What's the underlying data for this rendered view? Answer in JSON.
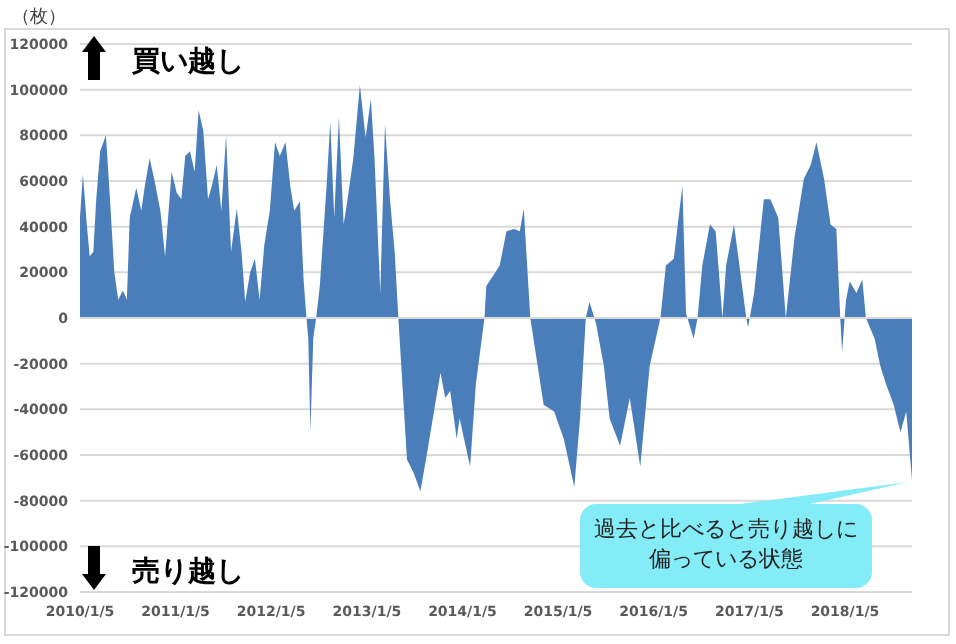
{
  "chart_data": {
    "type": "area",
    "ylabel": "（枚）",
    "color": "#4a7ebb",
    "grid": "y",
    "annotations": [
      "買い越し",
      "売り越し",
      {
        "text": "過去と比べると売り越しに偏っている状態",
        "x": "2018-09-18",
        "y": -71000
      }
    ],
    "xlim": [
      "2010-01-05",
      "2018-09-18"
    ],
    "xticks": [
      {
        "value": "2010-01-05",
        "label": "2010/1/5"
      },
      {
        "value": "2011-01-05",
        "label": "2011/1/5"
      },
      {
        "value": "2012-01-05",
        "label": "2012/1/5"
      },
      {
        "value": "2013-01-05",
        "label": "2013/1/5"
      },
      {
        "value": "2014-01-05",
        "label": "2014/1/5"
      },
      {
        "value": "2015-01-05",
        "label": "2015/1/5"
      },
      {
        "value": "2016-01-05",
        "label": "2016/1/5"
      },
      {
        "value": "2017-01-05",
        "label": "2017/1/5"
      },
      {
        "value": "2018-01-05",
        "label": "2018/1/5"
      }
    ],
    "ylim": [
      -120000,
      120000
    ],
    "yticks": [
      -120000,
      -100000,
      -80000,
      -60000,
      -40000,
      -20000,
      0,
      20000,
      40000,
      60000,
      80000,
      100000,
      120000
    ],
    "x": [
      "2010-01-05",
      "2010-01-16",
      "2010-01-31",
      "2010-02-11",
      "2010-02-25",
      "2010-03-08",
      "2010-03-23",
      "2010-04-14",
      "2010-04-28",
      "2010-05-16",
      "2010-05-31",
      "2010-06-18",
      "2010-07-03",
      "2010-07-14",
      "2010-08-08",
      "2010-08-27",
      "2010-09-10",
      "2010-09-28",
      "2010-10-17",
      "2010-11-08",
      "2010-11-26",
      "2010-12-21",
      "2011-01-09",
      "2011-01-27",
      "2011-02-11",
      "2011-03-01",
      "2011-03-19",
      "2011-04-03",
      "2011-04-21",
      "2011-05-09",
      "2011-05-24",
      "2011-06-11",
      "2011-06-29",
      "2011-07-17",
      "2011-08-05",
      "2011-08-27",
      "2011-09-14",
      "2011-09-28",
      "2011-10-17",
      "2011-11-04",
      "2011-11-22",
      "2011-12-10",
      "2011-12-31",
      "2012-01-20",
      "2012-02-07",
      "2012-02-29",
      "2012-03-18",
      "2012-04-02",
      "2012-04-24",
      "2012-05-08",
      "2012-05-19",
      "2012-05-26",
      "2012-06-03",
      "2012-06-14",
      "2012-06-25",
      "2012-07-09",
      "2012-08-04",
      "2012-08-18",
      "2012-09-02",
      "2012-09-20",
      "2012-10-08",
      "2012-10-23",
      "2012-11-14",
      "2012-12-09",
      "2012-12-31",
      "2013-01-20",
      "2013-02-03",
      "2013-02-25",
      "2013-03-15",
      "2013-04-03",
      "2013-04-21",
      "2013-05-05",
      "2013-06-07",
      "2013-07-03",
      "2013-07-28",
      "2013-08-23",
      "2013-09-18",
      "2013-10-13",
      "2013-10-31",
      "2013-11-19",
      "2013-12-14",
      "2013-12-25",
      "2014-02-03",
      "2014-02-25",
      "2014-03-30",
      "2014-04-06",
      "2014-05-05",
      "2014-05-27",
      "2014-06-22",
      "2014-07-21",
      "2014-08-12",
      "2014-08-27",
      "2014-09-21",
      "2014-11-11",
      "2014-12-21",
      "2015-01-27",
      "2015-03-08",
      "2015-03-30",
      "2015-04-21",
      "2015-05-05",
      "2015-05-24",
      "2015-05-31",
      "2015-06-29",
      "2015-07-21",
      "2015-08-30",
      "2015-10-06",
      "2015-11-15",
      "2015-12-21",
      "2016-01-31",
      "2016-02-21",
      "2016-03-22",
      "2016-04-24",
      "2016-05-08",
      "2016-06-06",
      "2016-06-21",
      "2016-07-09",
      "2016-08-07",
      "2016-08-29",
      "2016-09-24",
      "2016-10-08",
      "2016-11-07",
      "2016-11-21",
      "2016-12-24",
      "2016-12-31",
      "2017-01-23",
      "2017-03-01",
      "2017-03-26",
      "2017-04-25",
      "2017-05-24",
      "2017-06-26",
      "2017-08-01",
      "2017-08-27",
      "2017-09-18",
      "2017-10-17",
      "2017-11-11",
      "2017-12-03",
      "2017-12-18",
      "2017-12-25",
      "2018-01-09",
      "2018-01-23",
      "2018-02-18",
      "2018-03-12",
      "2018-03-26",
      "2018-04-28",
      "2018-05-20",
      "2018-06-11",
      "2018-07-10",
      "2018-08-05",
      "2018-08-27",
      "2018-09-18"
    ],
    "values": [
      44000,
      63000,
      41000,
      27000,
      29000,
      52000,
      73000,
      80000,
      55000,
      20000,
      8000,
      12000,
      8000,
      44000,
      57000,
      47000,
      58000,
      70000,
      60000,
      47000,
      27000,
      64000,
      55000,
      52000,
      71000,
      73000,
      64000,
      91000,
      82000,
      52000,
      58000,
      67000,
      47000,
      80000,
      29000,
      48000,
      29000,
      7000,
      20000,
      26000,
      8000,
      32000,
      47000,
      77000,
      71000,
      77000,
      58000,
      47000,
      51000,
      17000,
      0,
      -9000,
      -50000,
      -9000,
      0,
      14000,
      58000,
      86000,
      44000,
      88000,
      41000,
      52000,
      70000,
      102000,
      79000,
      96000,
      70000,
      11000,
      85000,
      52000,
      29000,
      0,
      -62000,
      -68000,
      -76000,
      -59000,
      -41000,
      -24000,
      -35000,
      -32000,
      -53000,
      -44000,
      -65000,
      -29000,
      0,
      14000,
      19000,
      23000,
      38000,
      39000,
      38000,
      48000,
      0,
      -38000,
      -41000,
      -53000,
      -74000,
      -44000,
      0,
      7000,
      0,
      -3000,
      -21000,
      -44000,
      -56000,
      -35000,
      -65000,
      -21000,
      0,
      23000,
      26000,
      58000,
      2000,
      -9000,
      0,
      23000,
      41000,
      38000,
      0,
      23000,
      41000,
      29000,
      0,
      -4000,
      11000,
      52000,
      52000,
      44000,
      0,
      35000,
      61000,
      67000,
      77000,
      61000,
      41000,
      39000,
      0,
      -15000,
      8000,
      16000,
      11000,
      17000,
      0,
      -9000,
      -21000,
      -29000,
      -38000,
      -50000,
      -41000,
      -71000
    ]
  }
}
